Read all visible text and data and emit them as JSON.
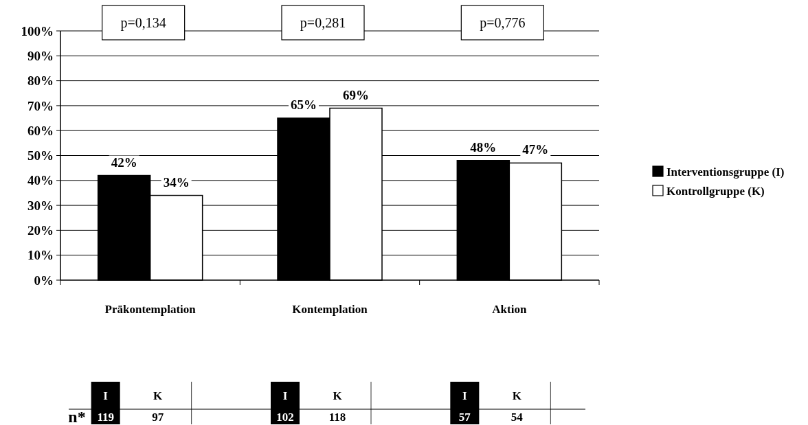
{
  "chart_data": {
    "type": "bar",
    "categories": [
      "Präkontemplation",
      "Kontemplation",
      "Aktion"
    ],
    "series": [
      {
        "name": "Interventionsgruppe (I)",
        "color": "#000000",
        "values": [
          42,
          65,
          48
        ]
      },
      {
        "name": "Kontrollgruppe (K)",
        "color": "#ffffff",
        "values": [
          34,
          69,
          47
        ]
      }
    ],
    "ylim": [
      0,
      100
    ],
    "yticks": [
      {
        "value": 0,
        "label": "0%"
      },
      {
        "value": 10,
        "label": "10%"
      },
      {
        "value": 20,
        "label": "20%"
      },
      {
        "value": 30,
        "label": "30%"
      },
      {
        "value": 40,
        "label": "40%"
      },
      {
        "value": 50,
        "label": "50%"
      },
      {
        "value": 60,
        "label": "60%"
      },
      {
        "value": 70,
        "label": "70%"
      },
      {
        "value": 80,
        "label": "80%"
      },
      {
        "value": 90,
        "label": "90%"
      },
      {
        "value": 100,
        "label": "100%"
      }
    ],
    "value_labels": [
      [
        "42%",
        "65%",
        "48%"
      ],
      [
        "34%",
        "69%",
        "47%"
      ]
    ],
    "grid": "y",
    "legend": "right",
    "annotations": [
      "p=0,134",
      "p=0,281",
      "p=0,776",
      "n*",
      "I",
      "K",
      "119",
      "97",
      "I",
      "K",
      "102",
      "118",
      "I",
      "K",
      "57",
      "54"
    ]
  }
}
